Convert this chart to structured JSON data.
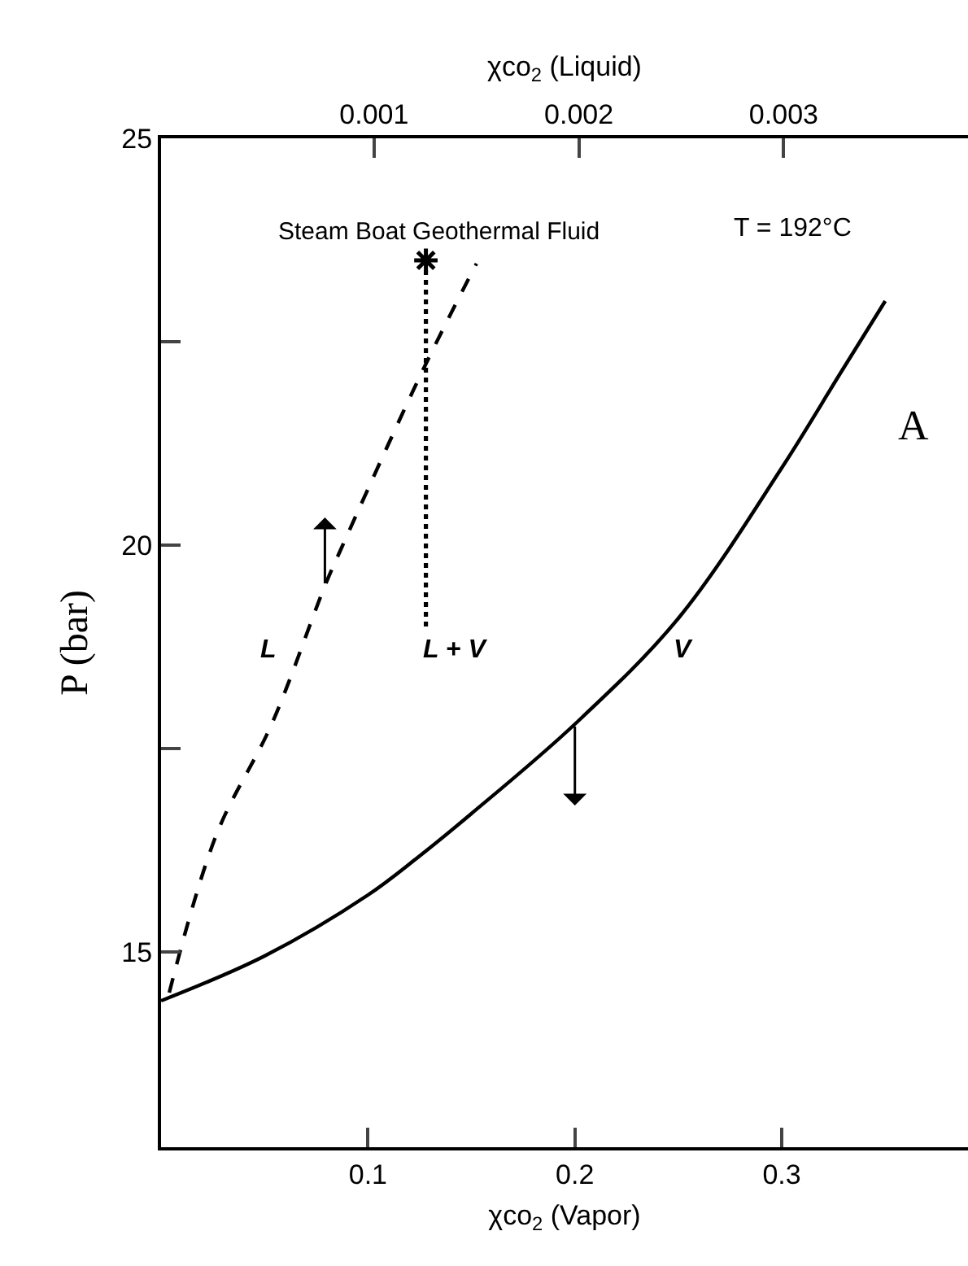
{
  "chart_data": {
    "type": "line",
    "xlabel": "χco$_{2}$ (Vapor)",
    "x2label": "χco$_{2}$ (Liquid)",
    "ylabel": "P (bar)",
    "xlim": [
      0,
      0.39
    ],
    "xticks": [
      0.1,
      0.2,
      0.3
    ],
    "x2lim": [
      -4e-05,
      0.0039
    ],
    "x2ticks": [
      0.001,
      0.002,
      0.003
    ],
    "ylim": [
      12.6,
      25
    ],
    "yticks": [
      15,
      {
        "value": 17.5,
        "label": null
      },
      20,
      {
        "value": 22.5,
        "label": null
      },
      25
    ],
    "marker": "none",
    "series": [
      {
        "color": "#000000",
        "line_style": "solid",
        "x": [
          0,
          0.05,
          0.1,
          0.124,
          0.15,
          0.2,
          0.25,
          0.3,
          0.328,
          0.35
        ],
        "values": [
          14.4,
          14.95,
          15.7,
          16.16,
          16.7,
          17.8,
          19.1,
          20.95,
          22.1,
          23.0
        ]
      },
      {
        "color": "#000000",
        "line_style": "dashed",
        "axis": "x2",
        "x": [
          0,
          0.00023,
          0.0005,
          0.00076,
          0.00084,
          0.00124,
          0.0015
        ],
        "values": [
          14.5,
          16.44,
          17.8,
          19.5,
          19.96,
          22.16,
          23.46
        ]
      },
      {
        "color": "#000000",
        "line_style": "dotted",
        "x": [
          0.128,
          0.128
        ],
        "values": [
          19.0,
          23.5
        ]
      },
      {
        "type": "scatter",
        "color": "#000000",
        "marker": "cross",
        "x": [
          0.128
        ],
        "values": [
          23.5
        ]
      }
    ],
    "annotations": [
      "Steam Boat Geothermal Fluid",
      "T = 192°C",
      "A",
      "L",
      "L + V",
      "V"
    ]
  }
}
